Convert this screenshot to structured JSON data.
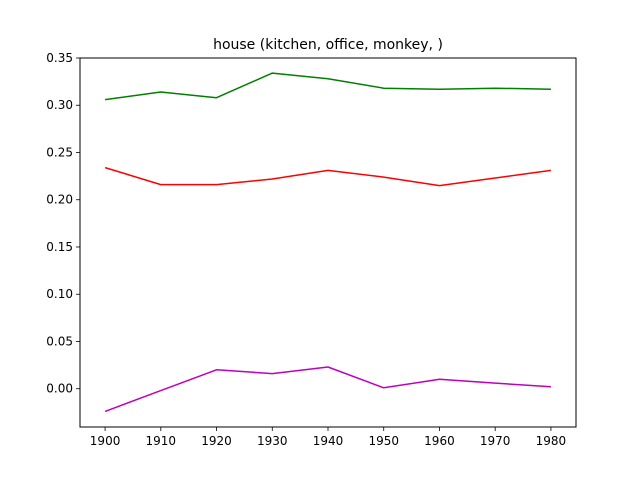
{
  "chart_data": {
    "type": "line",
    "title": "house (kitchen, office, monkey, )",
    "xlabel": "",
    "ylabel": "",
    "x": [
      1900,
      1910,
      1920,
      1930,
      1940,
      1950,
      1960,
      1970,
      1980
    ],
    "xlim": [
      1895.5,
      1984.5
    ],
    "ylim": [
      -0.0405,
      0.35
    ],
    "xticks": [
      1900,
      1910,
      1920,
      1930,
      1940,
      1950,
      1960,
      1970,
      1980
    ],
    "yticks": [
      0.0,
      0.05,
      0.1,
      0.15,
      0.2,
      0.25,
      0.3,
      0.35
    ],
    "ytick_labels": [
      "0.00",
      "0.05",
      "0.10",
      "0.15",
      "0.20",
      "0.25",
      "0.30",
      "0.35"
    ],
    "grid": false,
    "legend": false,
    "series": [
      {
        "color": "#008000",
        "values": [
          0.306,
          0.314,
          0.308,
          0.334,
          0.328,
          0.318,
          0.317,
          0.318,
          0.317
        ]
      },
      {
        "color": "#ff0000",
        "values": [
          0.234,
          0.216,
          0.216,
          0.222,
          0.231,
          0.224,
          0.215,
          0.223,
          0.231
        ]
      },
      {
        "color": "#bf00bf",
        "values": [
          -0.024,
          -0.002,
          0.02,
          0.016,
          0.023,
          0.001,
          0.01,
          0.006,
          0.002
        ]
      }
    ]
  }
}
